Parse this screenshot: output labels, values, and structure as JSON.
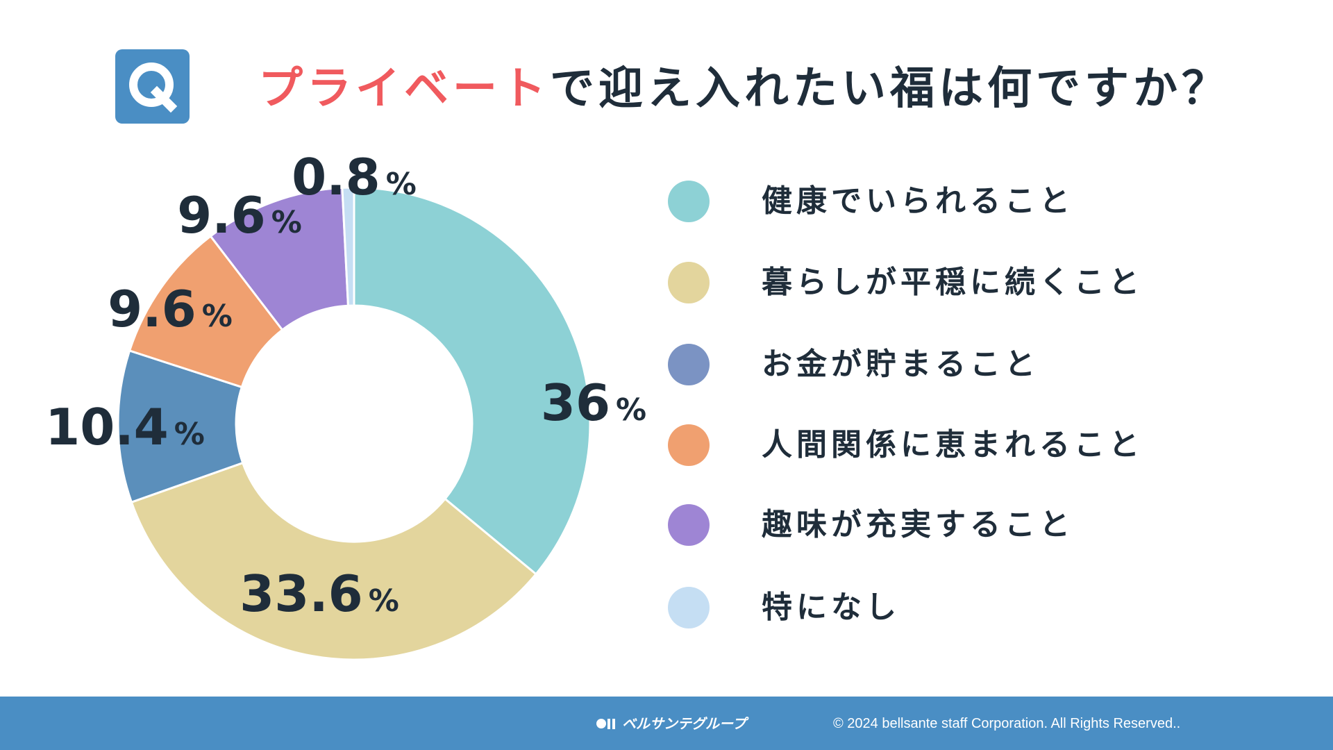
{
  "question": {
    "badge_letter": "Q",
    "title_highlight": "プライベート",
    "title_rest": "で迎え入れたい福は何ですか？",
    "highlight_color": "#f05a5e"
  },
  "chart_data": {
    "type": "pie",
    "style": "donut",
    "title": "プライベートで迎え入れたい福は何ですか？",
    "unit": "%",
    "categories": [
      "健康でいられること",
      "暮らしが平穏に続くこと",
      "お金が貯まること",
      "人間関係に恵まれること",
      "趣味が充実すること",
      "特になし"
    ],
    "values": [
      36,
      33.6,
      10.4,
      9.6,
      9.6,
      0.8
    ],
    "value_labels": [
      "36",
      "33.6",
      "10.4",
      "9.6",
      "9.6",
      "0.8"
    ],
    "colors": [
      "#8dd1d5",
      "#e3d59d",
      "#5b8fbb",
      "#f0a070",
      "#9e85d4",
      "#c5def3"
    ],
    "legend_position": "right"
  },
  "legend": {
    "items": [
      {
        "label": "健康でいられること",
        "color": "#8dd1d5"
      },
      {
        "label": "暮らしが平穏に続くこと",
        "color": "#e3d59d"
      },
      {
        "label": "お金が貯まること",
        "color": "#7b93c3"
      },
      {
        "label": "人間関係に恵まれること",
        "color": "#f0a070"
      },
      {
        "label": "趣味が充実すること",
        "color": "#9e85d4"
      },
      {
        "label": "特になし",
        "color": "#c5def3"
      }
    ]
  },
  "footer": {
    "logo_text": "ベルサンテグループ",
    "copyright": "© 2024 bellsante staff Corporation. All Rights Reserved..",
    "background": "#4a8ec4"
  }
}
